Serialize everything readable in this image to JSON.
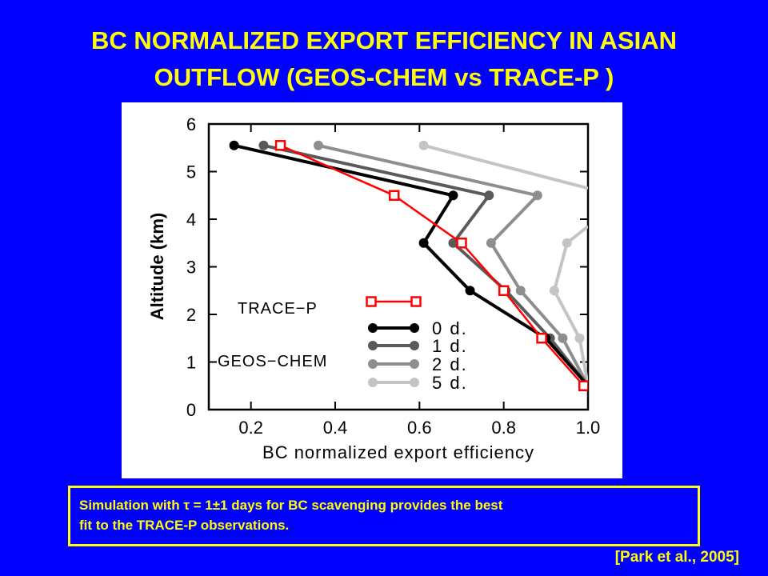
{
  "slide": {
    "title_line1": "BC NORMALIZED EXPORT EFFICIENCY IN ASIAN",
    "title_line2": "OUTFLOW (GEOS-CHEM vs TRACE-P )",
    "caption_line1": "Simulation with τ = 1±1 days for BC scavenging provides the best",
    "caption_line2": "fit to the TRACE-P observations.",
    "citation": "[Park et al., 2005]",
    "colors": {
      "background": "#0000FF",
      "text": "#FFFF00",
      "panel": "#FFFFFF"
    }
  },
  "chart_data": {
    "type": "line",
    "xlabel": "BC normalized export efficiency",
    "ylabel": "Altitude (km)",
    "xlim": [
      0.1,
      1.0
    ],
    "ylim": [
      0,
      6
    ],
    "x_ticks": [
      0.2,
      0.4,
      0.6,
      0.8,
      1.0
    ],
    "x_tick_labels": [
      "0.2",
      "0.4",
      "0.6",
      "0.8",
      "1.0"
    ],
    "y_ticks": [
      0,
      1,
      2,
      3,
      4,
      5,
      6
    ],
    "y_tick_labels": [
      "0",
      "1",
      "2",
      "3",
      "4",
      "5",
      "6"
    ],
    "legend_group_labels": {
      "observations": "TRACE−P",
      "model": "GEOS−CHEM"
    },
    "series": [
      {
        "id": "trace-p",
        "name": "TRACE−P",
        "color": "#FF0000",
        "marker": "square",
        "points": [
          [
            0.27,
            5.55
          ],
          [
            0.54,
            4.5
          ],
          [
            0.7,
            3.5
          ],
          [
            0.8,
            2.5
          ],
          [
            0.89,
            1.5
          ],
          [
            0.99,
            0.5
          ]
        ]
      },
      {
        "id": "0d",
        "name": "0 d.",
        "color": "#000000",
        "marker": "circle",
        "points": [
          [
            0.16,
            5.55
          ],
          [
            0.68,
            4.5
          ],
          [
            0.61,
            3.5
          ],
          [
            0.72,
            2.5
          ],
          [
            0.9,
            1.5
          ],
          [
            1.0,
            0.5
          ]
        ]
      },
      {
        "id": "1d",
        "name": "1 d.",
        "color": "#5A5A5A",
        "marker": "circle",
        "points": [
          [
            0.23,
            5.55
          ],
          [
            0.765,
            4.5
          ],
          [
            0.68,
            3.5
          ],
          [
            0.805,
            2.5
          ],
          [
            0.91,
            1.5
          ],
          [
            1.0,
            0.5
          ]
        ]
      },
      {
        "id": "2d",
        "name": "2 d.",
        "color": "#8E8E8E",
        "marker": "circle",
        "points": [
          [
            0.36,
            5.55
          ],
          [
            0.88,
            4.5
          ],
          [
            0.77,
            3.5
          ],
          [
            0.84,
            2.5
          ],
          [
            0.94,
            1.5
          ],
          [
            1.0,
            0.5
          ]
        ]
      },
      {
        "id": "5d",
        "name": "5 d.",
        "color": "#C4C4C4",
        "marker": "circle",
        "points": [
          [
            0.61,
            5.55
          ],
          [
            1.0,
            4.65
          ]
        ],
        "points_lower": [
          [
            1.0,
            3.85
          ],
          [
            0.95,
            3.5
          ],
          [
            0.92,
            2.5
          ],
          [
            0.98,
            1.5
          ],
          [
            1.0,
            0.5
          ]
        ]
      }
    ]
  }
}
